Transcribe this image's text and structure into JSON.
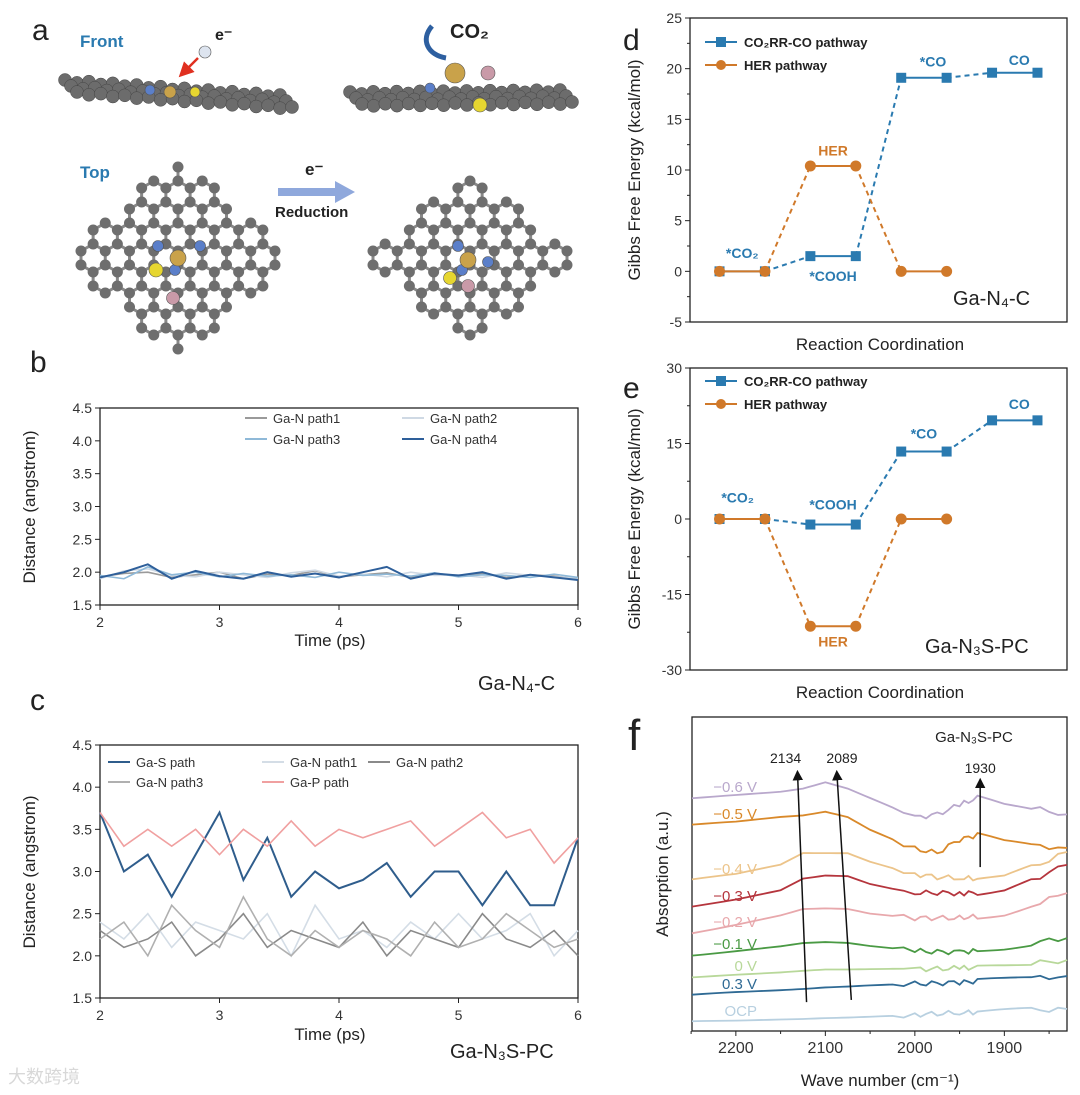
{
  "panel_a": {
    "label": "a",
    "front_label": "Front",
    "top_label": "Top",
    "electron_front": "e⁻",
    "co2_label": "CO₂",
    "electron_arrow": "e⁻",
    "reduction_label": "Reduction",
    "colors": {
      "carbon": "#6e6e6e",
      "nitrogen": "#5b7fc9",
      "gallium": "#c9a24a",
      "sulfur": "#e6d630",
      "phosphorus": "#c99aa8",
      "arrow": "#8fa8dc",
      "title": "#2a7ab0"
    }
  },
  "watermark": "大数跨境",
  "chart_data": [
    {
      "id": "b",
      "panel_label": "b",
      "type": "line",
      "sample_label": "Ga-N₄-C",
      "xlabel": "Time (ps)",
      "ylabel": "Distance (angstrom)",
      "xlim": [
        2,
        6
      ],
      "ylim": [
        1.5,
        4.5
      ],
      "xticks": [
        2,
        3,
        4,
        5,
        6
      ],
      "yticks": [
        1.5,
        2.0,
        2.5,
        3.0,
        3.5,
        4.0,
        4.5
      ],
      "legend_position": "top-right",
      "x": [
        2.0,
        2.2,
        2.4,
        2.6,
        2.8,
        3.0,
        3.2,
        3.4,
        3.6,
        3.8,
        4.0,
        4.2,
        4.4,
        4.6,
        4.8,
        5.0,
        5.2,
        5.4,
        5.6,
        5.8,
        6.0
      ],
      "series": [
        {
          "name": "Ga-N path1",
          "color": "#9a9a9a",
          "values": [
            1.93,
            1.98,
            2.0,
            1.92,
            1.96,
            2.0,
            1.9,
            1.97,
            1.95,
            2.02,
            1.93,
            1.96,
            1.99,
            1.92,
            1.97,
            1.95,
            1.98,
            1.92,
            1.96,
            1.94,
            1.9
          ]
        },
        {
          "name": "Ga-N path2",
          "color": "#cfd9e4",
          "values": [
            1.9,
            2.02,
            2.05,
            1.95,
            1.93,
            2.0,
            1.96,
            1.92,
            1.99,
            2.03,
            1.94,
            1.97,
            1.93,
            2.0,
            1.95,
            1.96,
            1.92,
            1.99,
            1.95,
            1.93,
            1.91
          ]
        },
        {
          "name": "Ga-N path3",
          "color": "#8fb9d8",
          "values": [
            1.95,
            1.9,
            2.08,
            1.96,
            2.0,
            1.93,
            1.98,
            1.94,
            1.96,
            1.92,
            2.0,
            1.95,
            1.97,
            1.94,
            1.99,
            1.93,
            1.96,
            1.95,
            1.92,
            1.97,
            1.92
          ]
        },
        {
          "name": "Ga-N path4",
          "color": "#2e5f9a",
          "values": [
            1.92,
            2.0,
            2.12,
            1.9,
            2.02,
            1.94,
            1.9,
            2.0,
            1.93,
            1.98,
            1.92,
            2.0,
            2.08,
            1.9,
            1.98,
            1.95,
            2.0,
            1.9,
            1.96,
            1.92,
            1.88
          ]
        }
      ]
    },
    {
      "id": "c",
      "panel_label": "c",
      "type": "line",
      "sample_label": "Ga-N₃S-PC",
      "xlabel": "Time (ps)",
      "ylabel": "Distance (angstrom)",
      "xlim": [
        2,
        6
      ],
      "ylim": [
        1.5,
        4.5
      ],
      "xticks": [
        2,
        3,
        4,
        5,
        6
      ],
      "yticks": [
        1.5,
        2.0,
        2.5,
        3.0,
        3.5,
        4.0,
        4.5
      ],
      "legend_position": "top",
      "x": [
        2.0,
        2.2,
        2.4,
        2.6,
        2.8,
        3.0,
        3.2,
        3.4,
        3.6,
        3.8,
        4.0,
        4.2,
        4.4,
        4.6,
        4.8,
        5.0,
        5.2,
        5.4,
        5.6,
        5.8,
        6.0
      ],
      "series": [
        {
          "name": "Ga-S path",
          "color": "#2f5d8c",
          "values": [
            3.7,
            3.0,
            3.2,
            2.7,
            3.2,
            3.7,
            2.9,
            3.4,
            2.7,
            3.0,
            2.8,
            2.9,
            3.1,
            2.7,
            3.0,
            3.0,
            2.6,
            3.0,
            2.6,
            2.6,
            3.4
          ]
        },
        {
          "name": "Ga-N path1",
          "color": "#d4dde6",
          "values": [
            2.4,
            2.2,
            2.5,
            2.1,
            2.4,
            2.3,
            2.2,
            2.5,
            2.0,
            2.6,
            2.2,
            2.3,
            2.1,
            2.4,
            2.2,
            2.5,
            2.2,
            2.3,
            2.5,
            2.0,
            2.3
          ]
        },
        {
          "name": "Ga-N path2",
          "color": "#8a8a8a",
          "values": [
            2.3,
            2.1,
            2.2,
            2.4,
            2.0,
            2.2,
            2.5,
            2.1,
            2.3,
            2.2,
            2.1,
            2.4,
            2.0,
            2.3,
            2.2,
            2.1,
            2.5,
            2.2,
            2.1,
            2.3,
            2.0
          ]
        },
        {
          "name": "Ga-N path3",
          "color": "#b0b0b0",
          "values": [
            2.2,
            2.4,
            2.0,
            2.6,
            2.3,
            2.1,
            2.7,
            2.2,
            2.0,
            2.3,
            2.1,
            2.3,
            2.2,
            2.0,
            2.4,
            2.1,
            2.2,
            2.5,
            2.3,
            2.1,
            2.2
          ]
        },
        {
          "name": "Ga-P path",
          "color": "#f0a0a0",
          "values": [
            3.7,
            3.3,
            3.5,
            3.3,
            3.5,
            3.2,
            3.5,
            3.3,
            3.6,
            3.3,
            3.5,
            3.4,
            3.5,
            3.6,
            3.3,
            3.5,
            3.7,
            3.4,
            3.5,
            3.1,
            3.4
          ]
        }
      ]
    },
    {
      "id": "d",
      "panel_label": "d",
      "type": "line",
      "sample_label": "Ga-N₄-C",
      "xlabel": "Reaction Coordination",
      "ylabel": "Gibbs Free Energy (kcal/mol)",
      "ylim": [
        -5,
        25
      ],
      "yticks": [
        -5,
        0,
        5,
        10,
        15,
        20,
        25
      ],
      "legend_position": "top-left",
      "series": [
        {
          "name": "CO₂RR-CO pathway",
          "color": "#2a7ab0",
          "marker": "square",
          "levels": [
            0,
            1.5,
            19.1,
            19.6
          ],
          "level_labels": [
            "*CO₂",
            "*COOH",
            "*CO",
            "CO"
          ]
        },
        {
          "name": "HER pathway",
          "color": "#d0792a",
          "marker": "circle",
          "levels": [
            0,
            10.4,
            0
          ],
          "level_labels": [
            "",
            "HER",
            ""
          ]
        }
      ]
    },
    {
      "id": "e",
      "panel_label": "e",
      "type": "line",
      "sample_label": "Ga-N₃S-PC",
      "xlabel": "Reaction Coordination",
      "ylabel": "Gibbs Free Energy (kcal/mol)",
      "ylim": [
        -30,
        30
      ],
      "yticks": [
        -30,
        -15,
        0,
        15,
        30
      ],
      "legend_position": "top-left",
      "series": [
        {
          "name": "CO₂RR-CO pathway",
          "color": "#2a7ab0",
          "marker": "square",
          "levels": [
            0,
            -1.1,
            13.4,
            19.6
          ],
          "level_labels": [
            "*CO₂",
            "*COOH",
            "*CO",
            "CO"
          ]
        },
        {
          "name": "HER pathway",
          "color": "#d0792a",
          "marker": "circle",
          "levels": [
            0,
            -21.3,
            0
          ],
          "level_labels": [
            "",
            "HER",
            ""
          ]
        }
      ]
    },
    {
      "id": "f",
      "panel_label": "f",
      "type": "line",
      "sample_label": "Ga-N₃S-PC",
      "xlabel": "Wave number (cm⁻¹)",
      "ylabel": "Absorption (a.u.)",
      "xlim": [
        2249,
        1830
      ],
      "ylim": [
        0,
        10
      ],
      "xticks": [
        2200,
        2100,
        2000,
        1900
      ],
      "x": [
        2249,
        2200,
        2150,
        2125,
        2100,
        2075,
        2050,
        2000,
        1975,
        1950,
        1930,
        1900,
        1870,
        1830
      ],
      "series": [
        {
          "name": "−0.6 V",
          "color": "#b9a8cc",
          "values": [
            7.42,
            7.5,
            7.6,
            7.7,
            7.9,
            7.7,
            7.4,
            6.8,
            6.9,
            7.2,
            7.42,
            7.2,
            7.1,
            6.9
          ]
        },
        {
          "name": "−0.5 V",
          "color": "#d9892a",
          "values": [
            6.56,
            6.65,
            6.8,
            6.85,
            6.97,
            6.8,
            6.4,
            5.8,
            5.67,
            6.1,
            6.24,
            6.0,
            5.9,
            5.83
          ]
        },
        {
          "name": "−0.4 V",
          "color": "#ecc48a",
          "values": [
            4.81,
            5.0,
            5.3,
            5.67,
            5.67,
            5.67,
            5.4,
            5.0,
            4.9,
            4.87,
            4.85,
            4.9,
            5.2,
            5.7
          ]
        },
        {
          "name": "−0.3 V",
          "color": "#b5353d",
          "values": [
            3.95,
            4.2,
            4.5,
            4.87,
            4.97,
            4.95,
            4.7,
            4.4,
            4.4,
            4.39,
            4.4,
            4.5,
            4.8,
            5.29
          ]
        },
        {
          "name": "−0.2 V",
          "color": "#e8a8ac",
          "values": [
            3.12,
            3.4,
            3.7,
            3.9,
            3.92,
            3.9,
            3.75,
            3.6,
            3.6,
            3.6,
            3.65,
            3.75,
            4.0,
            4.39
          ]
        },
        {
          "name": "−0.1 V",
          "color": "#4a9a44",
          "values": [
            2.42,
            2.55,
            2.7,
            2.8,
            2.83,
            2.8,
            2.7,
            2.55,
            2.52,
            2.52,
            2.55,
            2.65,
            2.8,
            2.96
          ]
        },
        {
          "name": "0 V",
          "color": "#b8d89a",
          "values": [
            1.72,
            1.78,
            1.85,
            1.9,
            1.94,
            1.94,
            1.95,
            1.97,
            1.98,
            2.0,
            2.02,
            2.08,
            2.15,
            2.26
          ]
        },
        {
          "name": "0.3 V",
          "color": "#2f6a94",
          "values": [
            1.15,
            1.22,
            1.28,
            1.32,
            1.37,
            1.4,
            1.44,
            1.5,
            1.52,
            1.55,
            1.58,
            1.62,
            1.68,
            1.75
          ]
        },
        {
          "name": "OCP",
          "color": "#b8d0e0",
          "values": [
            0.29,
            0.32,
            0.36,
            0.38,
            0.41,
            0.43,
            0.46,
            0.52,
            0.55,
            0.58,
            0.6,
            0.63,
            0.66,
            0.7
          ]
        }
      ],
      "annotations": [
        {
          "text": "2134",
          "from": [
            2121,
            0.92
          ],
          "to": [
            2131,
            8.15
          ]
        },
        {
          "text": "2089",
          "from": [
            2071,
            0.99
          ],
          "to": [
            2087,
            8.15
          ]
        },
        {
          "text": "1930",
          "from": [
            1927,
            5.22
          ],
          "to": [
            1927,
            7.9
          ]
        }
      ]
    }
  ]
}
